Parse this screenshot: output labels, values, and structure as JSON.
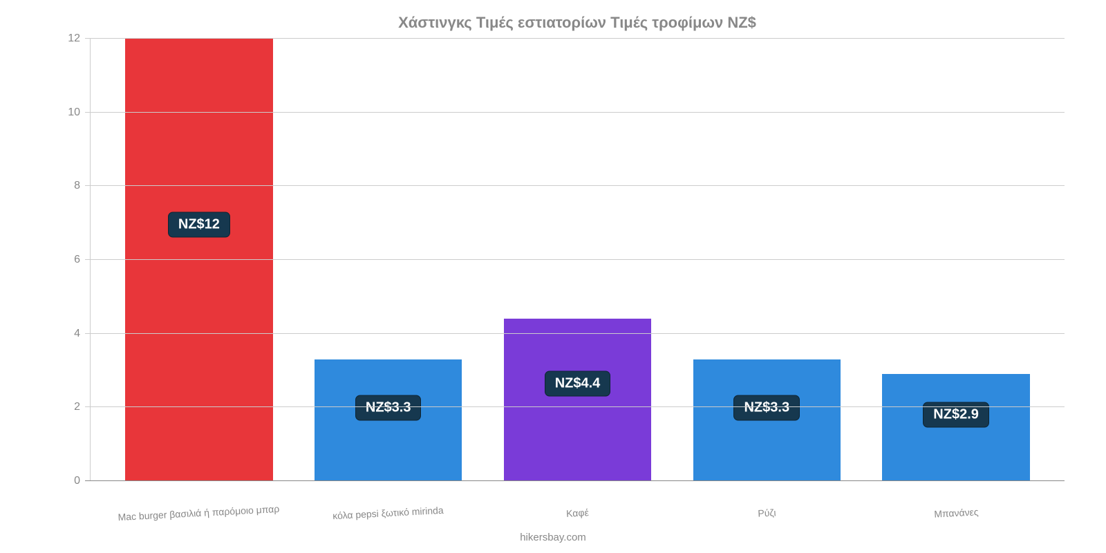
{
  "chart": {
    "type": "bar",
    "title": "Χάστινγκς Τιμές εστιατορίων Τιμές τροφίμων NZ$",
    "title_fontsize": 22,
    "title_color": "#888888",
    "background_color": "#ffffff",
    "grid_color": "#cccccc",
    "axis_color": "#888888",
    "y": {
      "min": 0,
      "max": 12,
      "tick_step": 2,
      "ticks": [
        0,
        2,
        4,
        6,
        8,
        10,
        12
      ],
      "label_fontsize": 16,
      "label_color": "#888888"
    },
    "x_label_fontsize": 14,
    "x_label_color": "#888888",
    "x_label_rotation_deg": -3,
    "bar_width_ratio": 0.78,
    "badge": {
      "bg": "#16384f",
      "text_color": "#ffffff",
      "fontsize": 20,
      "border_radius": 7
    },
    "categories": [
      {
        "label": "Mac burger βασιλιά ή παρόμοιο μπαρ",
        "value": 12,
        "value_label": "NZ$12",
        "color": "#e8363a",
        "badge_offset_pct_from_top_of_bar": 42
      },
      {
        "label": "κόλα pepsi ξωτικό mirinda",
        "value": 3.3,
        "value_label": "NZ$3.3",
        "color": "#2f8add",
        "badge_offset_pct_from_top_of_bar": 40
      },
      {
        "label": "Καφέ",
        "value": 4.4,
        "value_label": "NZ$4.4",
        "color": "#7a3bd8",
        "badge_offset_pct_from_top_of_bar": 40
      },
      {
        "label": "Ρύζι",
        "value": 3.3,
        "value_label": "NZ$3.3",
        "color": "#2f8add",
        "badge_offset_pct_from_top_of_bar": 40
      },
      {
        "label": "Μπανάνες",
        "value": 2.9,
        "value_label": "NZ$2.9",
        "color": "#2f8add",
        "badge_offset_pct_from_top_of_bar": 38
      }
    ],
    "credit": "hikersbay.com"
  }
}
